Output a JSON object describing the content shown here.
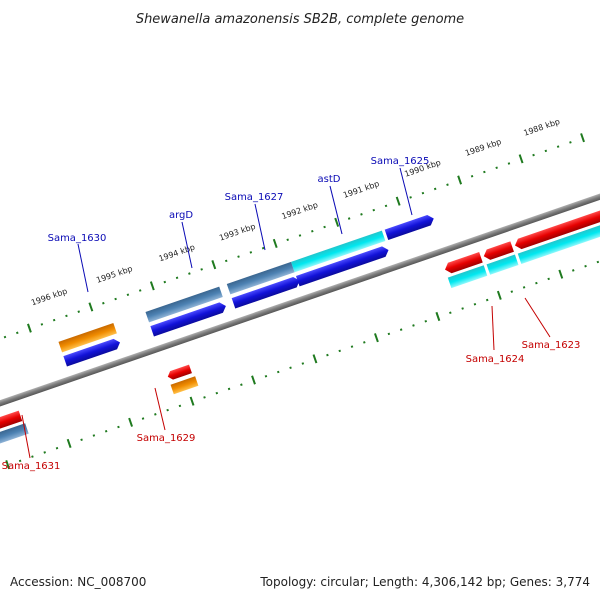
{
  "title": "Shewanella amazonensis SB2B, complete genome",
  "footer": {
    "accession": "Accession: NC_008700",
    "summary": "Topology: circular; Length: 4,306,142 bp; Genes: 3,774"
  },
  "scale_labels": [
    "1996 kbp",
    "1995 kbp",
    "1994 kbp",
    "1993 kbp",
    "1992 kbp",
    "1991 kbp",
    "1990 kbp",
    "1989 kbp",
    "1988 kbp"
  ],
  "gene_labels_forward": [
    "Sama_1630",
    "argD",
    "Sama_1627",
    "astD",
    "Sama_1625"
  ],
  "gene_labels_reverse": [
    "Sama_1631",
    "Sama_1629",
    "Sama_1624",
    "Sama_1623"
  ],
  "colors": {
    "backbone": "#808080",
    "tick": "#1f7a1f",
    "cds_forward": "#1515d8",
    "cds_reverse": "#e60000",
    "gene_steel": "#4a7fb0",
    "gene_orange": "#f08c00",
    "gene_cyan": "#00e5ee",
    "label_forward": "#0a0ab5",
    "label_reverse": "#c40000"
  }
}
